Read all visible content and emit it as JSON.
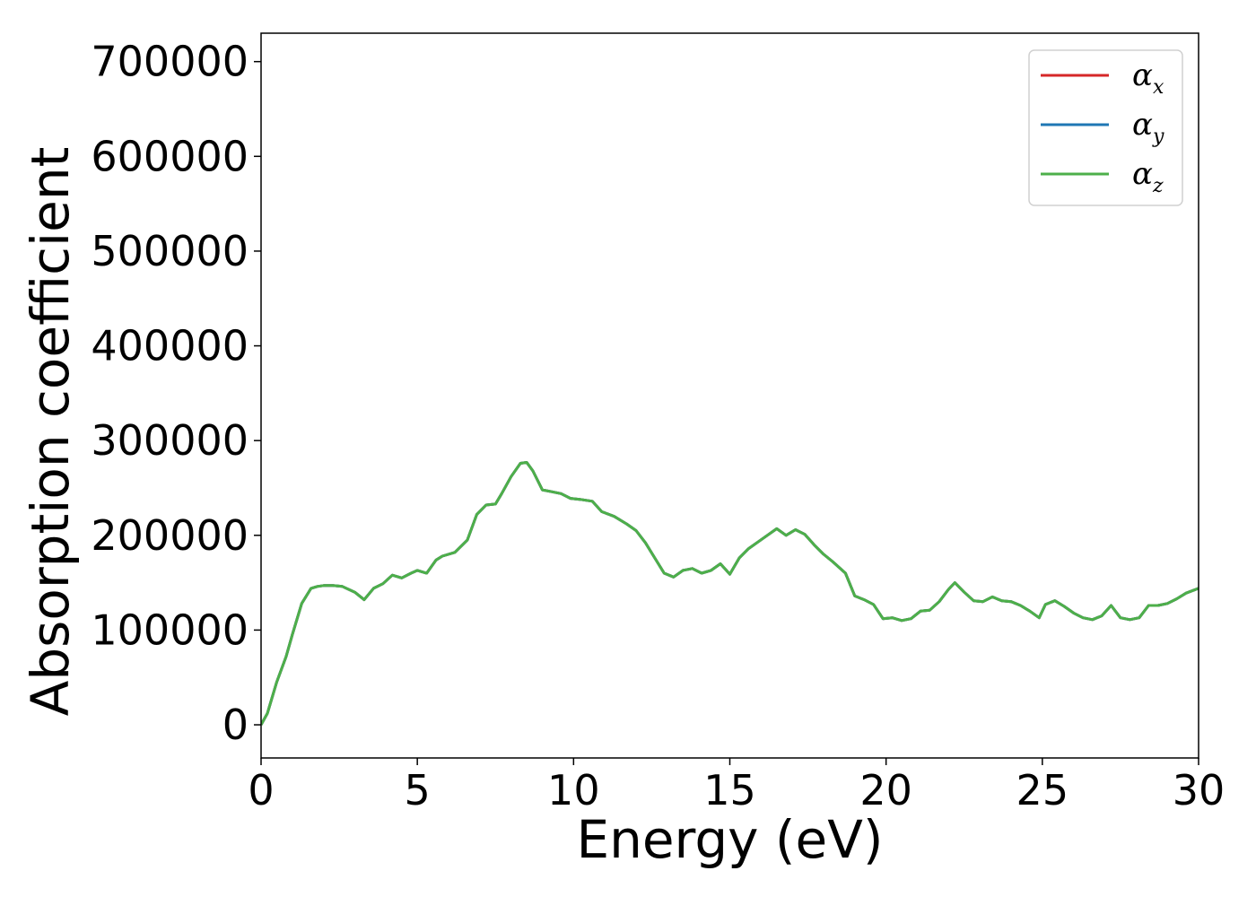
{
  "chart_data": {
    "type": "line",
    "xlabel": "Energy (eV)",
    "ylabel": "Absorption coefficient",
    "xlim": [
      0,
      30
    ],
    "ylim": [
      -35000,
      730000
    ],
    "xticks": [
      0,
      5,
      10,
      15,
      20,
      25,
      30
    ],
    "xtick_labels": [
      "0",
      "5",
      "10",
      "15",
      "20",
      "25",
      "30"
    ],
    "yticks": [
      0,
      100000,
      200000,
      300000,
      400000,
      500000,
      600000,
      700000
    ],
    "ytick_labels": [
      "0",
      "100000",
      "200000",
      "300000",
      "400000",
      "500000",
      "600000",
      "700000"
    ],
    "grid": false,
    "legend": {
      "position": "top-right",
      "entries": [
        {
          "symbol": "α",
          "subscript": "x",
          "color": "#d62728"
        },
        {
          "symbol": "α",
          "subscript": "y",
          "color": "#1f77b4"
        },
        {
          "symbol": "α",
          "subscript": "z",
          "color": "#4daf4a"
        }
      ]
    },
    "x": [
      0,
      0.2,
      0.5,
      0.8,
      1.0,
      1.3,
      1.6,
      1.8,
      2.0,
      2.3,
      2.6,
      3.0,
      3.3,
      3.6,
      3.9,
      4.2,
      4.5,
      4.8,
      5.0,
      5.3,
      5.6,
      5.8,
      6.2,
      6.6,
      6.9,
      7.2,
      7.5,
      7.7,
      8.0,
      8.3,
      8.5,
      8.7,
      9.0,
      9.3,
      9.6,
      9.9,
      10.2,
      10.6,
      10.9,
      11.3,
      11.7,
      12.0,
      12.3,
      12.6,
      12.9,
      13.2,
      13.5,
      13.8,
      14.1,
      14.4,
      14.7,
      15.0,
      15.3,
      15.6,
      15.9,
      16.2,
      16.5,
      16.8,
      17.1,
      17.4,
      17.7,
      18.0,
      18.3,
      18.7,
      19.0,
      19.3,
      19.6,
      19.9,
      20.2,
      20.5,
      20.8,
      21.1,
      21.4,
      21.7,
      22.0,
      22.2,
      22.5,
      22.8,
      23.1,
      23.4,
      23.7,
      24.0,
      24.3,
      24.6,
      24.9,
      25.1,
      25.4,
      25.7,
      26.0,
      26.3,
      26.6,
      26.9,
      27.2,
      27.5,
      27.8,
      28.1,
      28.4,
      28.7,
      29.0,
      29.3,
      29.6,
      30.0
    ],
    "series": [
      {
        "color": "#d62728",
        "values": [
          0,
          12000,
          45000,
          72000,
          95000,
          128000,
          144000,
          146000,
          147000,
          147000,
          146000,
          140000,
          132000,
          144000,
          149000,
          158000,
          155000,
          160000,
          163000,
          160000,
          174000,
          178000,
          182000,
          195000,
          222000,
          232000,
          233000,
          244000,
          262000,
          276000,
          277000,
          268000,
          248000,
          246000,
          244000,
          239000,
          238000,
          236000,
          225000,
          220000,
          212000,
          205000,
          192000,
          176000,
          160000,
          156000,
          163000,
          165000,
          160000,
          163000,
          170000,
          159000,
          176000,
          186000,
          193000,
          200000,
          207000,
          200000,
          206000,
          201000,
          190000,
          180000,
          172000,
          160000,
          136000,
          132000,
          127000,
          112000,
          113000,
          110000,
          112000,
          120000,
          121000,
          130000,
          143000,
          150000,
          140000,
          131000,
          130000,
          135000,
          131000,
          130000,
          126000,
          120000,
          113000,
          127000,
          131000,
          125000,
          118000,
          113000,
          111000,
          115000,
          126000,
          113000,
          111000,
          113000,
          126000,
          126000,
          128000,
          133000,
          139000,
          144000
        ]
      },
      {
        "color": "#1f77b4",
        "values": [
          0,
          12000,
          45000,
          72000,
          95000,
          128000,
          144000,
          146000,
          147000,
          147000,
          146000,
          140000,
          132000,
          144000,
          149000,
          158000,
          155000,
          160000,
          163000,
          160000,
          174000,
          178000,
          182000,
          195000,
          222000,
          232000,
          233000,
          244000,
          262000,
          276000,
          277000,
          268000,
          248000,
          246000,
          244000,
          239000,
          238000,
          236000,
          225000,
          220000,
          212000,
          205000,
          192000,
          176000,
          160000,
          156000,
          163000,
          165000,
          160000,
          163000,
          170000,
          159000,
          176000,
          186000,
          193000,
          200000,
          207000,
          200000,
          206000,
          201000,
          190000,
          180000,
          172000,
          160000,
          136000,
          132000,
          127000,
          112000,
          113000,
          110000,
          112000,
          120000,
          121000,
          130000,
          143000,
          150000,
          140000,
          131000,
          130000,
          135000,
          131000,
          130000,
          126000,
          120000,
          113000,
          127000,
          131000,
          125000,
          118000,
          113000,
          111000,
          115000,
          126000,
          113000,
          111000,
          113000,
          126000,
          126000,
          128000,
          133000,
          139000,
          144000
        ]
      },
      {
        "color": "#4daf4a",
        "values": [
          0,
          12000,
          45000,
          72000,
          95000,
          128000,
          144000,
          146000,
          147000,
          147000,
          146000,
          140000,
          132000,
          144000,
          149000,
          158000,
          155000,
          160000,
          163000,
          160000,
          174000,
          178000,
          182000,
          195000,
          222000,
          232000,
          233000,
          244000,
          262000,
          276000,
          277000,
          268000,
          248000,
          246000,
          244000,
          239000,
          238000,
          236000,
          225000,
          220000,
          212000,
          205000,
          192000,
          176000,
          160000,
          156000,
          163000,
          165000,
          160000,
          163000,
          170000,
          159000,
          176000,
          186000,
          193000,
          200000,
          207000,
          200000,
          206000,
          201000,
          190000,
          180000,
          172000,
          160000,
          136000,
          132000,
          127000,
          112000,
          113000,
          110000,
          112000,
          120000,
          121000,
          130000,
          143000,
          150000,
          140000,
          131000,
          130000,
          135000,
          131000,
          130000,
          126000,
          120000,
          113000,
          127000,
          131000,
          125000,
          118000,
          113000,
          111000,
          115000,
          126000,
          113000,
          111000,
          113000,
          126000,
          126000,
          128000,
          133000,
          139000,
          144000
        ]
      }
    ]
  }
}
